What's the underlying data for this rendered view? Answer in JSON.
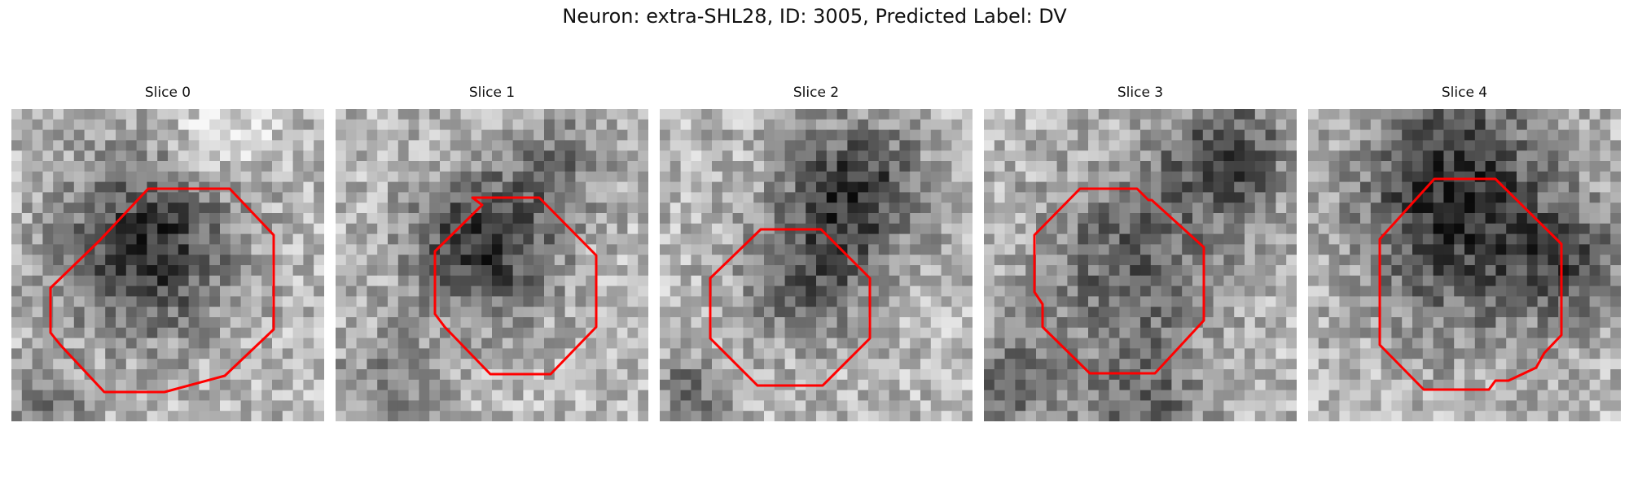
{
  "figure": {
    "title": "Neuron: extra-SHL28, ID: 3005, Predicted Label: DV"
  },
  "panels": [
    {
      "title": "Slice 0",
      "outline_color": "#ff0000",
      "background_style": "gray-noise"
    },
    {
      "title": "Slice 1",
      "outline_color": "#ff0000",
      "background_style": "gray-noise"
    },
    {
      "title": "Slice 2",
      "outline_color": "#ff0000",
      "background_style": "gray-noise"
    },
    {
      "title": "Slice 3",
      "outline_color": "#ff0000",
      "background_style": "gray-noise"
    },
    {
      "title": "Slice 4",
      "outline_color": "#ff0000",
      "background_style": "gray-noise"
    }
  ]
}
